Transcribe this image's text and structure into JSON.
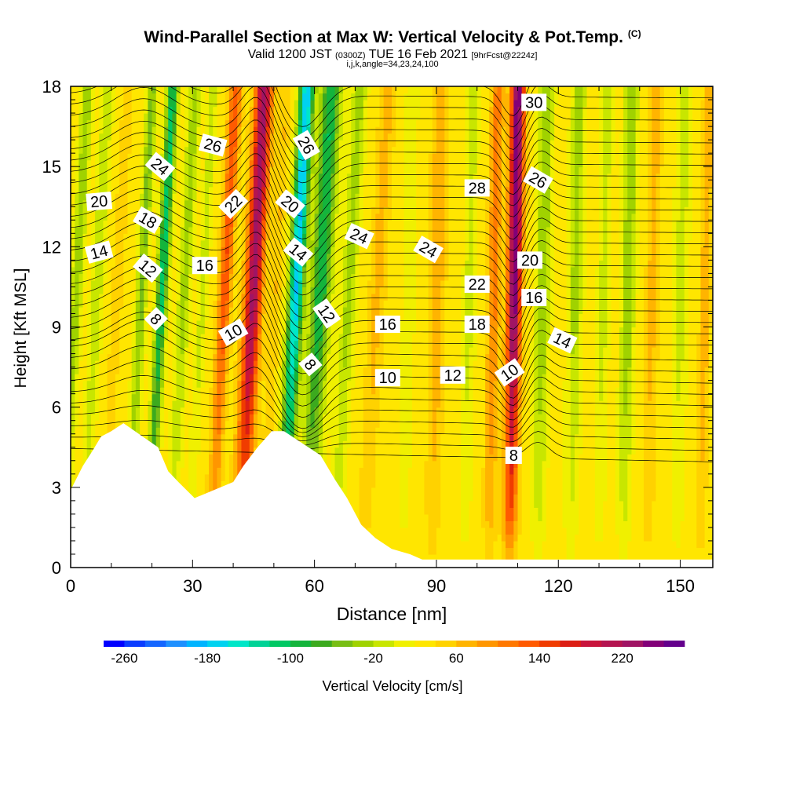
{
  "title": {
    "main": "Wind-Parallel Section at Max W: Vertical Velocity & Pot.Temp.",
    "copyright": "(C)",
    "valid_prefix": "Valid 1200 JST",
    "valid_utc": "(0300Z)",
    "valid_date": "TUE 16 Feb 2021",
    "forecast": "[9hrFcst@2224z]",
    "params": "i,j,k,angle=34,23,24,100"
  },
  "chart_data": {
    "type": "heatmap",
    "xlabel": "Distance [nm]",
    "ylabel": "Height [Kft MSL]",
    "xlim": [
      0,
      158
    ],
    "ylim": [
      0,
      18
    ],
    "x_ticks": [
      0,
      30,
      60,
      90,
      120,
      150
    ],
    "y_ticks": [
      0,
      3,
      6,
      9,
      12,
      15,
      18
    ],
    "colorbar": {
      "label": "Vertical Velocity [cm/s]",
      "tick_labels": [
        -260,
        -180,
        -100,
        -20,
        60,
        140,
        220
      ],
      "range": [
        -280,
        280
      ],
      "step": 20,
      "colors": [
        "#0000ff",
        "#0a3cff",
        "#1466ff",
        "#1e90ff",
        "#00b4ff",
        "#00d2f0",
        "#00e6c8",
        "#00d296",
        "#00c864",
        "#14b43c",
        "#3caa1e",
        "#78be14",
        "#a0d200",
        "#c8e600",
        "#f0f000",
        "#ffe600",
        "#ffd200",
        "#ffb400",
        "#ff9600",
        "#ff7800",
        "#ff5a00",
        "#f03c00",
        "#dc1e14",
        "#c8143c",
        "#b41450",
        "#a01464",
        "#820078",
        "#64008c"
      ]
    },
    "velocity_columns": [
      {
        "x": 1,
        "w": 1.4,
        "v": -70
      },
      {
        "x": 6,
        "w": 1.5,
        "v": -50
      },
      {
        "x": 11,
        "w": 1.2,
        "v": 30
      },
      {
        "x": 17,
        "w": 1.3,
        "v": -80
      },
      {
        "x": 22,
        "w": 1.4,
        "v": -140
      },
      {
        "x": 27.5,
        "w": 1.6,
        "v": -60
      },
      {
        "x": 32,
        "w": 1.2,
        "v": -40
      },
      {
        "x": 37.5,
        "w": 1.5,
        "v": 110
      },
      {
        "x": 44.5,
        "w": 2.1,
        "v": 200
      },
      {
        "x": 50,
        "w": 1.2,
        "v": 30
      },
      {
        "x": 55,
        "w": 1.8,
        "v": -210
      },
      {
        "x": 61,
        "w": 2.5,
        "v": -130
      },
      {
        "x": 68,
        "w": 1.8,
        "v": -60
      },
      {
        "x": 75,
        "w": 1.8,
        "v": 40
      },
      {
        "x": 83,
        "w": 1.5,
        "v": -30
      },
      {
        "x": 90,
        "w": 1.8,
        "v": 50
      },
      {
        "x": 98,
        "w": 1.5,
        "v": -40
      },
      {
        "x": 104,
        "w": 1.5,
        "v": 80
      },
      {
        "x": 109,
        "w": 1.7,
        "v": 230
      },
      {
        "x": 116,
        "w": 1.8,
        "v": -70
      },
      {
        "x": 124,
        "w": 1.8,
        "v": -60
      },
      {
        "x": 131,
        "w": 1.5,
        "v": -40
      },
      {
        "x": 137,
        "w": 1.7,
        "v": -70
      },
      {
        "x": 143,
        "w": 1.5,
        "v": 40
      },
      {
        "x": 150,
        "w": 1.8,
        "v": -40
      },
      {
        "x": 156,
        "w": 1.2,
        "v": 50
      }
    ],
    "terrain_profile": {
      "x": [
        0,
        3,
        5.5,
        7.5,
        10,
        13,
        21.5,
        24,
        26.5,
        30.5,
        40,
        42.5,
        46,
        49.5,
        52.5,
        61.5,
        65,
        68,
        71.5,
        75,
        79,
        83.5,
        86.5,
        158
      ],
      "height_kft": [
        2.9,
        3.8,
        4.4,
        4.9,
        5.1,
        5.4,
        4.5,
        3.6,
        3.2,
        2.6,
        3.2,
        3.8,
        4.5,
        5.1,
        5.1,
        4.2,
        3.3,
        2.6,
        1.6,
        1.1,
        0.7,
        0.5,
        0.3,
        0.3
      ]
    },
    "theta_labels": [
      {
        "text": "30",
        "x": 114,
        "y": 17.4,
        "angle": 0
      },
      {
        "text": "26",
        "x": 35,
        "y": 15.8,
        "angle": 15
      },
      {
        "text": "24",
        "x": 22,
        "y": 15,
        "angle": 40
      },
      {
        "text": "26",
        "x": 58,
        "y": 15.8,
        "angle": 60
      },
      {
        "text": "28",
        "x": 100,
        "y": 14.2,
        "angle": 0
      },
      {
        "text": "26",
        "x": 115,
        "y": 14.5,
        "angle": 30
      },
      {
        "text": "20",
        "x": 7,
        "y": 13.7,
        "angle": -5
      },
      {
        "text": "22",
        "x": 40,
        "y": 13.6,
        "angle": -45
      },
      {
        "text": "20",
        "x": 54,
        "y": 13.6,
        "angle": 40
      },
      {
        "text": "18",
        "x": 19,
        "y": 13,
        "angle": 30
      },
      {
        "text": "24",
        "x": 71,
        "y": 12.4,
        "angle": 25
      },
      {
        "text": "24",
        "x": 88,
        "y": 11.9,
        "angle": 30
      },
      {
        "text": "14",
        "x": 7,
        "y": 11.8,
        "angle": -15
      },
      {
        "text": "14",
        "x": 56,
        "y": 11.8,
        "angle": 40
      },
      {
        "text": "20",
        "x": 113,
        "y": 11.5,
        "angle": 0
      },
      {
        "text": "16",
        "x": 33,
        "y": 11.3,
        "angle": 0
      },
      {
        "text": "12",
        "x": 19,
        "y": 11.2,
        "angle": 40
      },
      {
        "text": "22",
        "x": 100,
        "y": 10.6,
        "angle": 0
      },
      {
        "text": "16",
        "x": 114,
        "y": 10.1,
        "angle": 0
      },
      {
        "text": "12",
        "x": 63,
        "y": 9.5,
        "angle": 55
      },
      {
        "text": "8",
        "x": 21,
        "y": 9.3,
        "angle": 45
      },
      {
        "text": "16",
        "x": 78,
        "y": 9.1,
        "angle": 0
      },
      {
        "text": "18",
        "x": 100,
        "y": 9.1,
        "angle": 0
      },
      {
        "text": "10",
        "x": 40,
        "y": 8.8,
        "angle": -30
      },
      {
        "text": "14",
        "x": 121,
        "y": 8.5,
        "angle": 25
      },
      {
        "text": "8",
        "x": 59,
        "y": 7.6,
        "angle": 50
      },
      {
        "text": "10",
        "x": 108,
        "y": 7.3,
        "angle": -35
      },
      {
        "text": "10",
        "x": 78,
        "y": 7.1,
        "angle": 0
      },
      {
        "text": "12",
        "x": 94,
        "y": 7.2,
        "angle": 0
      },
      {
        "text": "8",
        "x": 109,
        "y": 4.2,
        "angle": 0
      }
    ]
  }
}
